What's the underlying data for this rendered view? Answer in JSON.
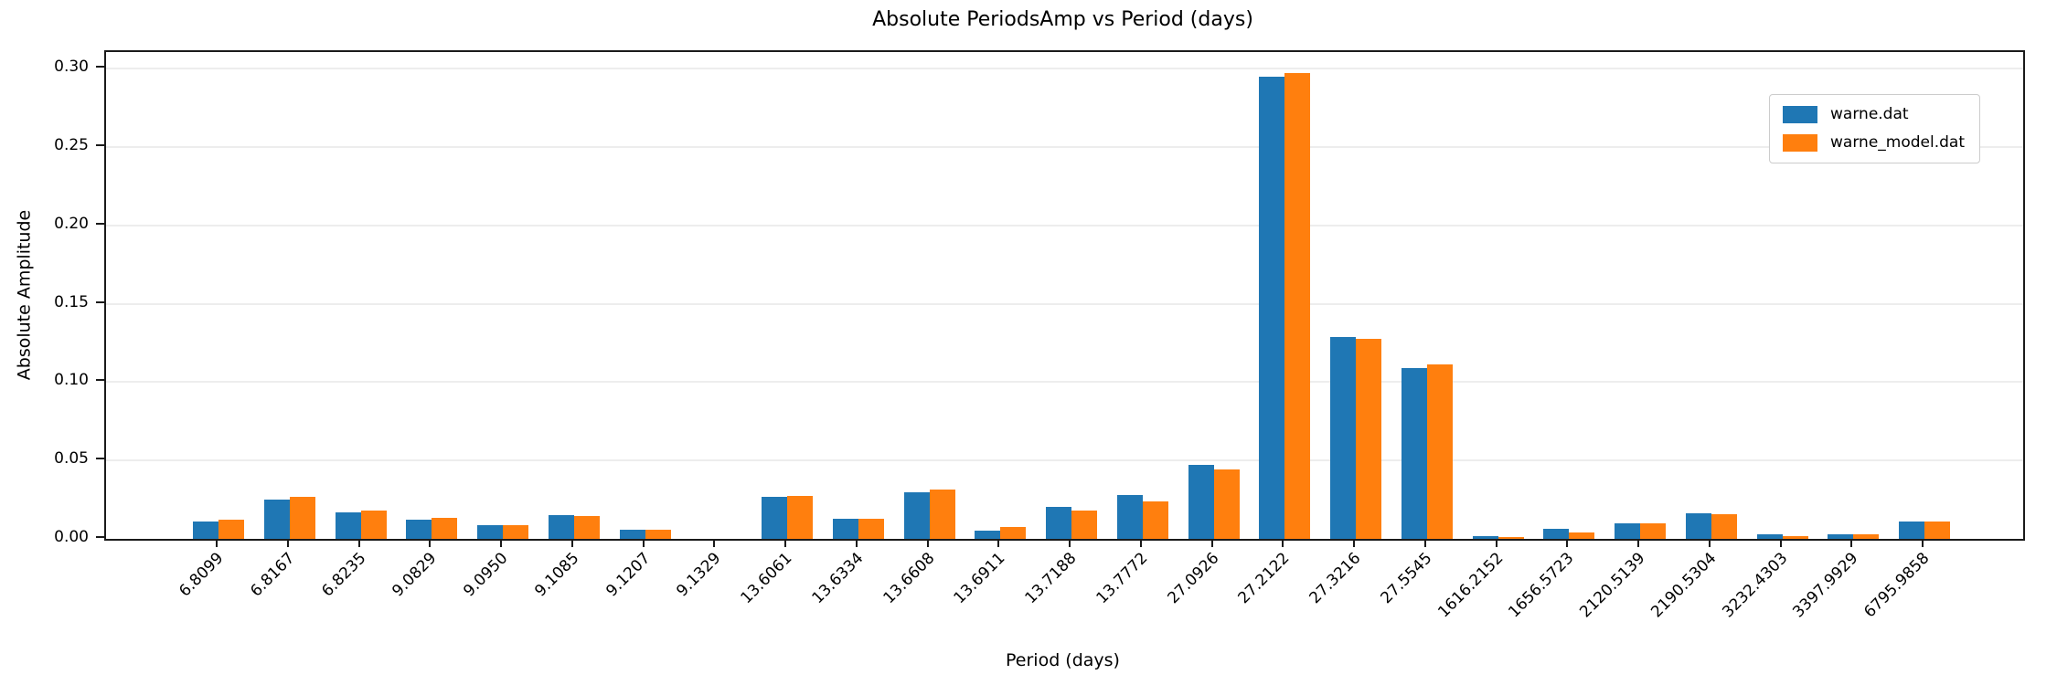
{
  "chart_data": {
    "type": "bar",
    "title": "Absolute PeriodsAmp vs Period (days)",
    "xlabel": "Period (days)",
    "ylabel": "Absolute Amplitude",
    "categories": [
      "6.8099",
      "6.8167",
      "6.8235",
      "9.0829",
      "9.0950",
      "9.1085",
      "9.1207",
      "9.1329",
      "13.6061",
      "13.6334",
      "13.6608",
      "13.6911",
      "13.7188",
      "13.7772",
      "27.0926",
      "27.2122",
      "27.3216",
      "27.5545",
      "1616.2152",
      "1656.5723",
      "2120.5139",
      "2190.5304",
      "3232.4303",
      "3397.9929",
      "6795.9858"
    ],
    "series": [
      {
        "name": "warne.dat",
        "color": "#1f77b4",
        "values": [
          0.011,
          0.025,
          0.017,
          0.0125,
          0.009,
          0.015,
          0.006,
          0.0002,
          0.027,
          0.013,
          0.03,
          0.005,
          0.0205,
          0.028,
          0.047,
          0.295,
          0.129,
          0.109,
          0.002,
          0.0065,
          0.01,
          0.0165,
          0.003,
          0.003,
          0.011
        ]
      },
      {
        "name": "warne_model.dat",
        "color": "#ff7f0e",
        "values": [
          0.012,
          0.027,
          0.018,
          0.0135,
          0.009,
          0.0145,
          0.006,
          0.0002,
          0.0275,
          0.013,
          0.0315,
          0.0075,
          0.018,
          0.024,
          0.044,
          0.297,
          0.1275,
          0.111,
          0.001,
          0.004,
          0.01,
          0.016,
          0.002,
          0.003,
          0.011
        ]
      }
    ],
    "yticks": [
      "0.00",
      "0.05",
      "0.10",
      "0.15",
      "0.20",
      "0.25",
      "0.30"
    ],
    "ylim": [
      0,
      0.3105
    ],
    "grid": "horizontal",
    "grid_color": "#ededed",
    "spine_color": "#1a1a1a",
    "legend_position": "upper right",
    "xtick_rotation": 45
  }
}
